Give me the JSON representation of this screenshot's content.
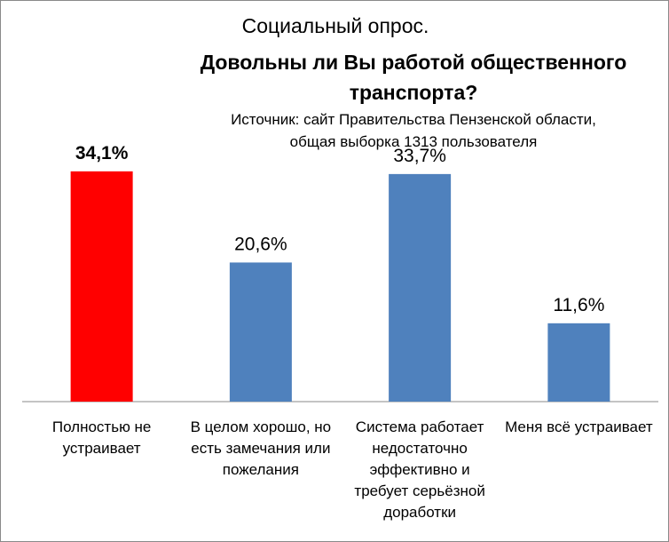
{
  "title_line1": "Социальный опрос.",
  "title_line2": "Довольны ли Вы работой общественного транспорта?",
  "source_line1": "Источник: сайт Правительства Пензенской области,",
  "source_line2": "общая выборка 1313 пользователя",
  "chart_data": {
    "type": "bar",
    "categories": [
      "Полностью не устраивает",
      "В целом хорошо, но есть замечания или пожелания",
      "Система работает недостаточно эффективно и требует серьёзной доработки",
      "Меня всё устраивает"
    ],
    "values": [
      34.1,
      20.6,
      33.7,
      11.6
    ],
    "data_labels": [
      "34,1%",
      "20,6%",
      "33,7%",
      "11,6%"
    ],
    "bar_colors": [
      "#ff0000",
      "#4f81bd",
      "#4f81bd",
      "#4f81bd"
    ],
    "highlight_index": 0,
    "ylim": [
      0,
      40
    ],
    "grid": false,
    "legend": "none",
    "xlabel": "",
    "ylabel": ""
  }
}
